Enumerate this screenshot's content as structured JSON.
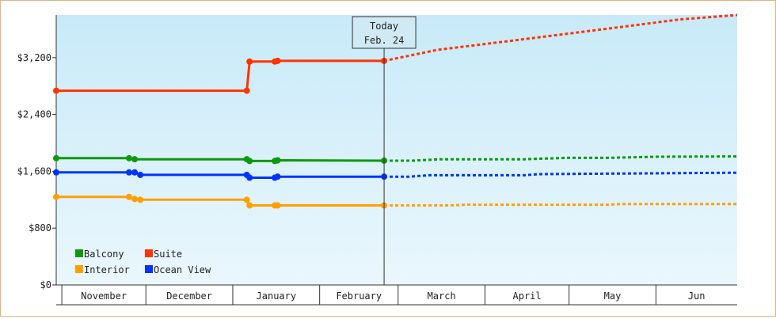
{
  "chart_data": {
    "type": "line",
    "title": "",
    "xlabel": "",
    "ylabel": "",
    "ylim": [
      0,
      3800
    ],
    "y_ticks": [
      0,
      800,
      1600,
      2400,
      3200
    ],
    "y_tick_labels": [
      "$0",
      "$800",
      "$1,600",
      "$2,400",
      "$3,200"
    ],
    "x_range": [
      "2021-10-30",
      "2022-06-30"
    ],
    "month_labels": [
      {
        "label": "November",
        "start": "2021-11-01",
        "end": "2021-12-01"
      },
      {
        "label": "December",
        "start": "2021-12-01",
        "end": "2022-01-01"
      },
      {
        "label": "January",
        "start": "2022-01-01",
        "end": "2022-02-01"
      },
      {
        "label": "February",
        "start": "2022-02-01",
        "end": "2022-03-01"
      },
      {
        "label": "March",
        "start": "2022-03-01",
        "end": "2022-04-01"
      },
      {
        "label": "April",
        "start": "2022-04-01",
        "end": "2022-05-01"
      },
      {
        "label": "May",
        "start": "2022-05-01",
        "end": "2022-06-01"
      },
      {
        "label": "Jun",
        "start": "2022-06-01",
        "end": "2022-06-30"
      }
    ],
    "today": {
      "date": "2022-02-24",
      "label_line1": "Today",
      "label_line2": "Feb. 24"
    },
    "grid": false,
    "legend_position": "bottom-left",
    "series": [
      {
        "name": "Balcony",
        "color": "#0c9a0c",
        "points": [
          [
            "2021-10-30",
            1785
          ],
          [
            "2021-11-25",
            1785
          ],
          [
            "2021-11-27",
            1770
          ],
          [
            "2022-01-06",
            1770
          ],
          [
            "2022-01-07",
            1745
          ],
          [
            "2022-01-16",
            1745
          ],
          [
            "2022-01-17",
            1755
          ],
          [
            "2022-02-24",
            1750
          ]
        ],
        "markers": [
          "2021-10-30",
          "2021-11-25",
          "2021-11-27",
          "2022-01-06",
          "2022-01-07",
          "2022-01-16",
          "2022-01-17",
          "2022-02-24"
        ],
        "forecast": [
          [
            "2022-02-24",
            1750
          ],
          [
            "2022-03-06",
            1750
          ],
          [
            "2022-03-16",
            1770
          ],
          [
            "2022-04-15",
            1770
          ],
          [
            "2022-04-30",
            1790
          ],
          [
            "2022-05-15",
            1790
          ],
          [
            "2022-06-01",
            1805
          ],
          [
            "2022-06-30",
            1810
          ]
        ]
      },
      {
        "name": "Suite",
        "color": "#ff3300",
        "points": [
          [
            "2021-10-30",
            2735
          ],
          [
            "2022-01-06",
            2735
          ],
          [
            "2022-01-07",
            3145
          ],
          [
            "2022-01-16",
            3145
          ],
          [
            "2022-01-17",
            3155
          ],
          [
            "2022-02-24",
            3155
          ]
        ],
        "markers": [
          "2021-10-30",
          "2022-01-06",
          "2022-01-07",
          "2022-01-16",
          "2022-01-17",
          "2022-02-24"
        ],
        "forecast": [
          [
            "2022-02-24",
            3155
          ],
          [
            "2022-03-15",
            3310
          ],
          [
            "2022-04-15",
            3460
          ],
          [
            "2022-05-15",
            3610
          ],
          [
            "2022-06-10",
            3740
          ],
          [
            "2022-06-30",
            3800
          ]
        ]
      },
      {
        "name": "Interior",
        "color": "#ff9f00",
        "points": [
          [
            "2021-10-30",
            1240
          ],
          [
            "2021-11-25",
            1240
          ],
          [
            "2021-11-27",
            1210
          ],
          [
            "2021-11-29",
            1200
          ],
          [
            "2022-01-06",
            1200
          ],
          [
            "2022-01-07",
            1120
          ],
          [
            "2022-01-16",
            1120
          ],
          [
            "2022-01-17",
            1120
          ],
          [
            "2022-02-24",
            1120
          ]
        ],
        "markers": [
          "2021-10-30",
          "2021-11-25",
          "2021-11-27",
          "2021-11-29",
          "2022-01-06",
          "2022-01-07",
          "2022-01-16",
          "2022-01-17",
          "2022-02-24"
        ],
        "forecast": [
          [
            "2022-02-24",
            1120
          ],
          [
            "2022-03-20",
            1120
          ],
          [
            "2022-03-25",
            1130
          ],
          [
            "2022-05-15",
            1130
          ],
          [
            "2022-05-20",
            1140
          ],
          [
            "2022-06-30",
            1140
          ]
        ]
      },
      {
        "name": "Ocean View",
        "color": "#0033ff",
        "points": [
          [
            "2021-10-30",
            1585
          ],
          [
            "2021-11-25",
            1585
          ],
          [
            "2021-11-27",
            1585
          ],
          [
            "2021-11-29",
            1550
          ],
          [
            "2022-01-06",
            1550
          ],
          [
            "2022-01-07",
            1510
          ],
          [
            "2022-01-16",
            1510
          ],
          [
            "2022-01-17",
            1525
          ],
          [
            "2022-02-24",
            1525
          ]
        ],
        "markers": [
          "2021-10-30",
          "2021-11-25",
          "2021-11-27",
          "2021-11-29",
          "2022-01-06",
          "2022-01-07",
          "2022-01-16",
          "2022-01-17",
          "2022-02-24"
        ],
        "forecast": [
          [
            "2022-02-24",
            1525
          ],
          [
            "2022-03-05",
            1525
          ],
          [
            "2022-03-12",
            1545
          ],
          [
            "2022-04-15",
            1545
          ],
          [
            "2022-04-20",
            1560
          ],
          [
            "2022-06-30",
            1580
          ]
        ]
      }
    ],
    "legend_order": [
      "Balcony",
      "Suite",
      "Interior",
      "Ocean View"
    ]
  }
}
